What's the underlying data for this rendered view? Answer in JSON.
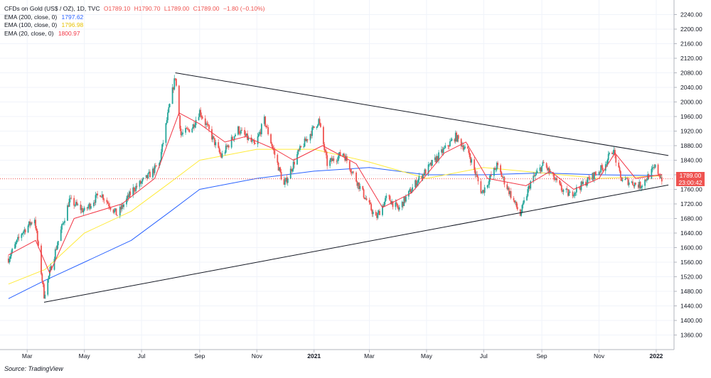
{
  "header": {
    "title": "CFDs on Gold (US$ / OZ), 1D, TVC",
    "ohlc": {
      "o": "O1789.10",
      "h": "H1790.70",
      "l": "L1789.00",
      "c": "C1789.00",
      "change": "−1.80 (−0.10%)"
    }
  },
  "indicators": [
    {
      "label": "EMA (200, close, 0)",
      "value": "1797.62",
      "color": "#2962ff"
    },
    {
      "label": "EMA (100, close, 0)",
      "value": "1796.98",
      "color": "#ffeb3b"
    },
    {
      "label": "EMA (20, close, 0)",
      "value": "1800.97",
      "color": "#f23645"
    }
  ],
  "price_tag": {
    "price": "1789.00",
    "countdown": "23:00:42",
    "color": "#ef5350"
  },
  "footer": "Source: TradingView",
  "chart_data": {
    "type": "candlestick",
    "title": "CFDs on Gold (US$ / OZ), 1D, TVC",
    "ylim": [
      1320,
      2280
    ],
    "y_ticks": [
      "1360.00",
      "1400.00",
      "1440.00",
      "1480.00",
      "1520.00",
      "1560.00",
      "1600.00",
      "1640.00",
      "1680.00",
      "1720.00",
      "1760.00",
      "1800.00",
      "1840.00",
      "1880.00",
      "1920.00",
      "1960.00",
      "2000.00",
      "2040.00",
      "2080.00",
      "2120.00",
      "2160.00",
      "2200.00",
      "2240.00"
    ],
    "x_ticks": [
      "Mar",
      "May",
      "Jul",
      "Sep",
      "Nov",
      "2021",
      "Mar",
      "May",
      "Jul",
      "Sep",
      "Nov",
      "2022"
    ],
    "x_range": [
      "2020-02",
      "2022-01"
    ],
    "grid": true,
    "colors": {
      "up": "#26a69a",
      "down": "#ef5350"
    },
    "price_path": [
      [
        "2020-02-10",
        1570
      ],
      [
        "2020-02-24",
        1640
      ],
      [
        "2020-03-09",
        1680
      ],
      [
        "2020-03-19",
        1470
      ],
      [
        "2020-04-01",
        1600
      ],
      [
        "2020-04-15",
        1730
      ],
      [
        "2020-05-01",
        1700
      ],
      [
        "2020-05-18",
        1750
      ],
      [
        "2020-06-05",
        1690
      ],
      [
        "2020-06-22",
        1760
      ],
      [
        "2020-07-06",
        1790
      ],
      [
        "2020-07-20",
        1830
      ],
      [
        "2020-07-28",
        1950
      ],
      [
        "2020-08-06",
        2070
      ],
      [
        "2020-08-12",
        1910
      ],
      [
        "2020-08-24",
        1930
      ],
      [
        "2020-09-01",
        1975
      ],
      [
        "2020-09-24",
        1850
      ],
      [
        "2020-10-12",
        1925
      ],
      [
        "2020-10-30",
        1880
      ],
      [
        "2020-11-09",
        1950
      ],
      [
        "2020-11-30",
        1770
      ],
      [
        "2020-12-15",
        1860
      ],
      [
        "2021-01-06",
        1950
      ],
      [
        "2021-01-15",
        1830
      ],
      [
        "2021-02-01",
        1860
      ],
      [
        "2021-02-18",
        1770
      ],
      [
        "2021-03-08",
        1680
      ],
      [
        "2021-03-20",
        1740
      ],
      [
        "2021-04-01",
        1705
      ],
      [
        "2021-04-20",
        1780
      ],
      [
        "2021-05-10",
        1840
      ],
      [
        "2021-06-01",
        1905
      ],
      [
        "2021-06-15",
        1860
      ],
      [
        "2021-06-29",
        1750
      ],
      [
        "2021-07-15",
        1825
      ],
      [
        "2021-08-09",
        1690
      ],
      [
        "2021-08-20",
        1780
      ],
      [
        "2021-09-03",
        1830
      ],
      [
        "2021-09-22",
        1760
      ],
      [
        "2021-10-01",
        1745
      ],
      [
        "2021-10-20",
        1785
      ],
      [
        "2021-11-05",
        1820
      ],
      [
        "2021-11-16",
        1870
      ],
      [
        "2021-11-24",
        1790
      ],
      [
        "2021-12-15",
        1770
      ],
      [
        "2021-12-31",
        1820
      ],
      [
        "2022-01-07",
        1789
      ]
    ],
    "ema_200": [
      [
        "2020-02-10",
        1460
      ],
      [
        "2020-03-20",
        1510
      ],
      [
        "2020-05-01",
        1560
      ],
      [
        "2020-06-20",
        1620
      ],
      [
        "2020-08-01",
        1700
      ],
      [
        "2020-09-01",
        1760
      ],
      [
        "2020-11-01",
        1790
      ],
      [
        "2021-01-01",
        1810
      ],
      [
        "2021-03-01",
        1820
      ],
      [
        "2021-05-01",
        1800
      ],
      [
        "2021-07-01",
        1800
      ],
      [
        "2021-09-01",
        1805
      ],
      [
        "2021-11-01",
        1800
      ],
      [
        "2022-01-07",
        1797.62
      ]
    ],
    "ema_100": [
      [
        "2020-02-10",
        1500
      ],
      [
        "2020-03-20",
        1540
      ],
      [
        "2020-05-01",
        1640
      ],
      [
        "2020-06-20",
        1700
      ],
      [
        "2020-08-01",
        1780
      ],
      [
        "2020-09-01",
        1840
      ],
      [
        "2020-11-01",
        1870
      ],
      [
        "2021-01-01",
        1870
      ],
      [
        "2021-03-01",
        1835
      ],
      [
        "2021-05-01",
        1790
      ],
      [
        "2021-07-01",
        1820
      ],
      [
        "2021-09-01",
        1805
      ],
      [
        "2021-11-01",
        1790
      ],
      [
        "2022-01-07",
        1796.98
      ]
    ],
    "ema_20": [
      [
        "2020-02-10",
        1580
      ],
      [
        "2020-03-10",
        1620
      ],
      [
        "2020-03-25",
        1530
      ],
      [
        "2020-04-20",
        1680
      ],
      [
        "2020-06-10",
        1720
      ],
      [
        "2020-07-15",
        1790
      ],
      [
        "2020-08-10",
        1970
      ],
      [
        "2020-09-01",
        1940
      ],
      [
        "2020-09-28",
        1890
      ],
      [
        "2020-10-20",
        1905
      ],
      [
        "2020-11-20",
        1870
      ],
      [
        "2020-12-10",
        1840
      ],
      [
        "2021-01-10",
        1880
      ],
      [
        "2021-02-15",
        1830
      ],
      [
        "2021-03-15",
        1710
      ],
      [
        "2021-04-15",
        1750
      ],
      [
        "2021-05-20",
        1860
      ],
      [
        "2021-06-12",
        1890
      ],
      [
        "2021-07-05",
        1790
      ],
      [
        "2021-08-15",
        1770
      ],
      [
        "2021-09-10",
        1810
      ],
      [
        "2021-10-05",
        1760
      ],
      [
        "2021-11-01",
        1790
      ],
      [
        "2021-11-18",
        1860
      ],
      [
        "2021-12-10",
        1790
      ],
      [
        "2022-01-07",
        1800.97
      ]
    ],
    "trendlines": [
      {
        "name": "upper",
        "from": [
          "2020-08-06",
          2080
        ],
        "to": [
          "2022-01-14",
          1853
        ]
      },
      {
        "name": "lower",
        "from": [
          "2020-03-19",
          1450
        ],
        "to": [
          "2022-01-14",
          1772
        ]
      }
    ],
    "last_price": 1789.0,
    "last_price_line_color": "#ef5350"
  }
}
